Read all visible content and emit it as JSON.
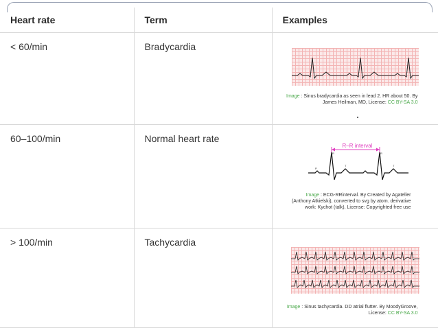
{
  "headers": {
    "heart_rate": "Heart rate",
    "term": "Term",
    "examples": "Examples"
  },
  "rows": [
    {
      "heart_rate": "< 60/min",
      "term": "Bradycardia",
      "caption": {
        "label": "Image",
        "text": " : Sinus bradycardia as seen in lead 2. HR about 50. By James Heilman, MD, License: ",
        "license": "CC BY-SA 3.0"
      }
    },
    {
      "heart_rate": "60–100/min",
      "term": "Normal heart rate",
      "diagram_label": "R–R interval",
      "caption": {
        "label": "Image",
        "text": " : ECG-RRinterval. By Created by Agateller (Anthony Atkielski), converted to svg by atom. derivative work: Kychot (talk), License: Copyrighted free use",
        "license": ""
      }
    },
    {
      "heart_rate": "> 100/min",
      "term": "Tachycardia",
      "caption": {
        "label": "Image",
        "text": " : Sinus tachycardia. DD atrial flutter. By MoodyGroove, License: ",
        "license": "CC BY-SA 3.0"
      }
    }
  ],
  "colors": {
    "grid_line": "#f3b4b4",
    "grid_bg": "#fbe9e9",
    "license_green": "#4aa84a",
    "rr_interval_magenta": "#e040c0"
  }
}
